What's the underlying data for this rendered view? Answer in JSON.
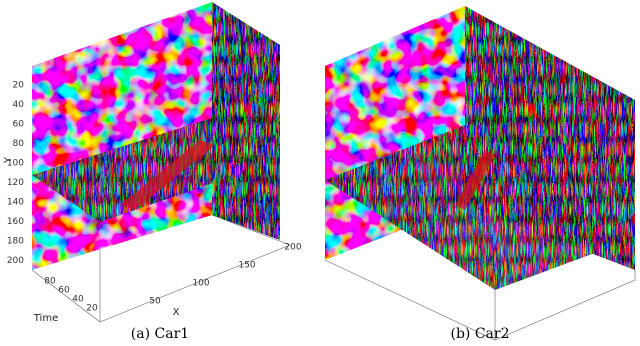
{
  "panels": [
    {
      "caption": "(a) Car1",
      "axes": {
        "y": {
          "label": "Y",
          "ticks": [
            "20",
            "40",
            "60",
            "80",
            "100",
            "120",
            "140",
            "160",
            "180",
            "200"
          ]
        },
        "time": {
          "label": "Time",
          "ticks": [
            "80",
            "60",
            "40",
            "20"
          ]
        },
        "x": {
          "label": "X",
          "ticks": [
            "50",
            "100",
            "150",
            "200"
          ]
        }
      }
    },
    {
      "caption": "(b) Car2"
    }
  ]
}
